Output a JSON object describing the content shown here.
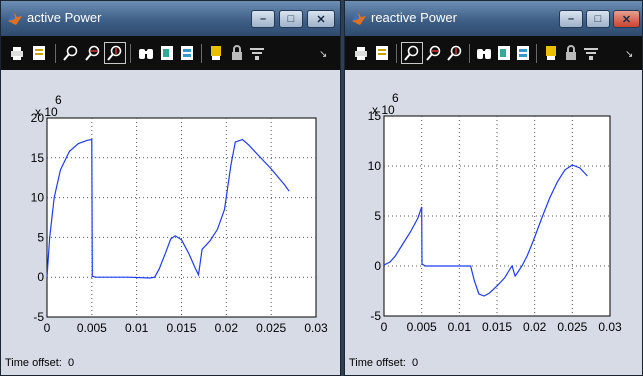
{
  "windows": [
    {
      "title": "active Power",
      "time_offset_label": "Time offset:",
      "time_offset_value": "0",
      "exponent_base": "x 10",
      "exponent_power": "6"
    },
    {
      "title": "reactive Power",
      "time_offset_label": "Time offset:",
      "time_offset_value": "0",
      "exponent_base": "x 10",
      "exponent_power": "6"
    }
  ],
  "window_controls": {
    "minimize": "–",
    "maximize": "□",
    "close": "✕"
  },
  "toolbar_icons": [
    "print-icon",
    "print-preview-icon",
    "zoom-in-icon",
    "zoom-x-icon",
    "zoom-y-icon",
    "binoculars-icon",
    "save-axes-icon",
    "restore-axes-icon",
    "parameters-icon",
    "lock-icon",
    "float-icon",
    "toolbar-overflow-icon"
  ],
  "colors": {
    "trace": "#1f3cf0",
    "plot_bg": "#ffffff",
    "window_bg": "#d6dbe6",
    "toolbar_bg": "#0e0e0e"
  },
  "chart_data": [
    {
      "type": "line",
      "title": "active Power",
      "xlim": [
        0,
        0.03
      ],
      "ylim": [
        -5,
        20
      ],
      "x_ticks": [
        "0",
        "0.005",
        "0.01",
        "0.015",
        "0.02",
        "0.025",
        "0.03"
      ],
      "y_ticks": [
        "-5",
        "0",
        "5",
        "10",
        "15",
        "20"
      ],
      "y_multiplier": "x 10^6",
      "grid": true,
      "series": [
        {
          "x": [
            0,
            0.0003,
            0.0008,
            0.0015,
            0.0025,
            0.0035,
            0.0045,
            0.005,
            0.00505,
            0.0055,
            0.007,
            0.009,
            0.0115,
            0.012,
            0.0125,
            0.0132,
            0.0138,
            0.0143,
            0.015,
            0.0158,
            0.0165,
            0.0169,
            0.0173,
            0.0182,
            0.019,
            0.0198,
            0.0205,
            0.021,
            0.0218,
            0.0225,
            0.0235,
            0.025,
            0.0265,
            0.027
          ],
          "y": [
            0,
            5,
            10,
            13.5,
            15.8,
            16.8,
            17.2,
            17.3,
            0.1,
            0,
            0,
            0,
            -0.1,
            0,
            1,
            3,
            4.8,
            5.2,
            4.7,
            3,
            1.2,
            0.3,
            3.5,
            4.6,
            6,
            8.5,
            14,
            17,
            17.3,
            16.6,
            15.4,
            13.6,
            11.6,
            10.8
          ]
        }
      ]
    },
    {
      "type": "line",
      "title": "reactive Power",
      "xlim": [
        0,
        0.03
      ],
      "ylim": [
        -5,
        15
      ],
      "x_ticks": [
        "0",
        "0.005",
        "0.01",
        "0.015",
        "0.02",
        "0.025",
        "0.03"
      ],
      "y_ticks": [
        "-5",
        "0",
        "5",
        "10",
        "15"
      ],
      "y_multiplier": "x 10^6",
      "grid": true,
      "series": [
        {
          "x": [
            0,
            0.0008,
            0.0015,
            0.0025,
            0.0035,
            0.0045,
            0.005,
            0.00505,
            0.0055,
            0.0075,
            0.0115,
            0.012,
            0.0126,
            0.0133,
            0.014,
            0.015,
            0.016,
            0.0168,
            0.017,
            0.0174,
            0.0177,
            0.0183,
            0.019,
            0.0198,
            0.021,
            0.022,
            0.023,
            0.024,
            0.025,
            0.026,
            0.027
          ],
          "y": [
            0.1,
            0.4,
            1,
            2.2,
            3.4,
            4.8,
            5.9,
            0.2,
            0,
            0,
            0,
            -1.5,
            -2.8,
            -3,
            -2.7,
            -2,
            -1.2,
            -0.2,
            0,
            -1,
            -0.7,
            0,
            1,
            2.5,
            4.9,
            6.8,
            8.4,
            9.6,
            10.1,
            9.8,
            9
          ]
        }
      ]
    }
  ]
}
